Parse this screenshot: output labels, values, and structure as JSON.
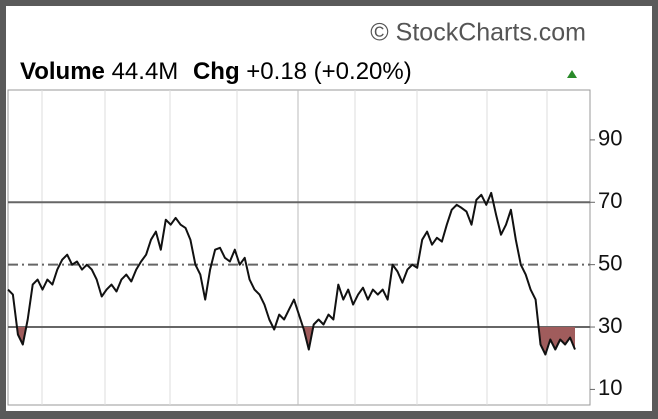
{
  "chart_data": {
    "type": "line",
    "watermark": "© StockCharts.com",
    "header": {
      "volume_label": "Volume",
      "volume": "44.4M",
      "change_label": "Chg",
      "change": "+0.18 (+0.20%)"
    },
    "values": [
      42,
      40.4,
      27.6,
      24.4,
      32.4,
      43.6,
      45.2,
      42,
      45.2,
      43.6,
      48.4,
      51.6,
      53.2,
      50,
      51,
      48.4,
      50,
      48.4,
      45.2,
      39.8,
      42,
      43.6,
      41.4,
      45.2,
      46.8,
      44.6,
      48.4,
      51,
      53.2,
      58,
      60.6,
      54.8,
      64.4,
      62.8,
      65,
      62.8,
      61.8,
      58,
      50,
      46.8,
      38.8,
      48.4,
      54.8,
      55.4,
      52.2,
      51,
      54.8,
      50,
      52.2,
      45.2,
      42,
      40.4,
      37.2,
      32.4,
      29.2,
      34,
      32.4,
      35.6,
      38.8,
      34,
      29.2,
      22.8,
      30.8,
      32.4,
      30.8,
      34,
      32.4,
      43.6,
      38.8,
      42,
      37.2,
      40.4,
      42.6,
      38.8,
      42,
      40.4,
      42,
      38.8,
      50,
      47.8,
      44.2,
      48.4,
      50,
      49,
      58,
      60.6,
      56.4,
      58.6,
      57.4,
      62.8,
      67.6,
      69.2,
      68.2,
      67,
      62.8,
      70.8,
      72.4,
      69.2,
      73,
      66,
      59.6,
      62.8,
      67.6,
      58,
      50,
      46.8,
      42,
      38.8,
      24.4,
      21.2,
      26,
      22.8,
      26,
      24.4,
      26.6,
      22.8
    ],
    "color": "#111111",
    "levels": [
      {
        "value": 70,
        "style": "solid"
      },
      {
        "value": 50,
        "style": "dashdot"
      },
      {
        "value": 30,
        "style": "solid"
      }
    ],
    "fill_below_color": "#a05c5c",
    "ylim": [
      5,
      106
    ],
    "yticks": [
      10,
      30,
      50,
      70,
      90
    ]
  }
}
